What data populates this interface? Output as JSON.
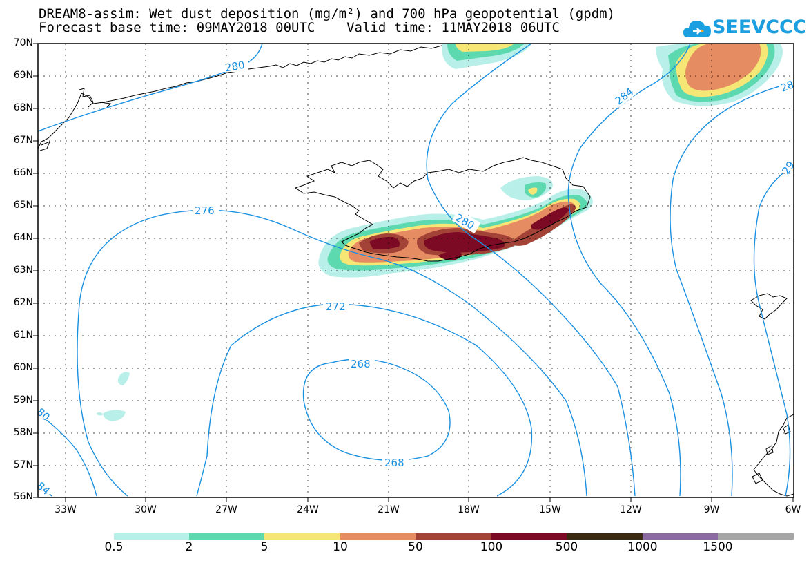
{
  "header": {
    "title_line1": "DREAM8-assim: Wet dust deposition (mg/m²) and 700 hPa geopotential (gpdm)",
    "title_line2": "Forecast base time: 09MAY2018 00UTC    Valid time: 11MAY2018 06UTC"
  },
  "logo": {
    "text": "SEEVCCC",
    "icon": "cloud-icon",
    "color": "#1b9fe0"
  },
  "axes": {
    "lat_labels": [
      "70N",
      "69N",
      "68N",
      "67N",
      "66N",
      "65N",
      "64N",
      "63N",
      "62N",
      "61N",
      "60N",
      "59N",
      "58N",
      "57N",
      "56N"
    ],
    "lon_labels": [
      "33W",
      "30W",
      "27W",
      "24W",
      "21W",
      "18W",
      "15W",
      "12W",
      "9W",
      "6W"
    ]
  },
  "contours": {
    "color": "#1a90e0",
    "labels": [
      "280",
      "284",
      "276",
      "280",
      "272",
      "268",
      "268",
      "80",
      "84",
      "28",
      "29"
    ]
  },
  "colorbar": {
    "colors": [
      "#b8efe8",
      "#5dd9b0",
      "#f6e676",
      "#e58c62",
      "#a34236",
      "#7c0a24",
      "#3b2a12",
      "#8b6aa0",
      "#a6a6a6"
    ],
    "labels": [
      "0.5",
      "2",
      "5",
      "10",
      "50",
      "100",
      "500",
      "1000",
      "1500"
    ]
  },
  "legend_colors": {
    "contour": "#1a90e0",
    "coast": "#000000"
  }
}
